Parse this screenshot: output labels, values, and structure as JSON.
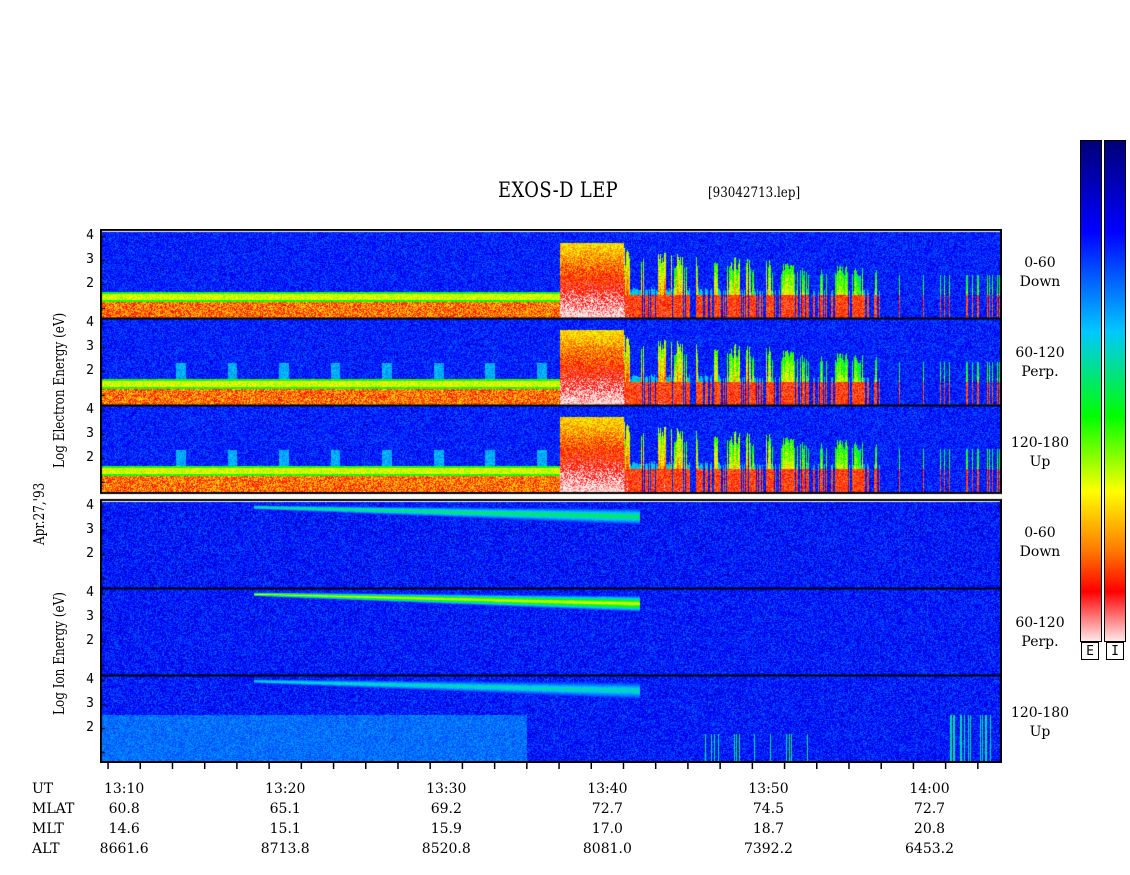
{
  "header": {
    "title": "EXOS-D LEP",
    "filename": "[93042713.lep]",
    "date_label": "Apr.27,'93"
  },
  "axis": {
    "electron_ylabel": "Log  Electron  Energy (eV)",
    "ion_ylabel": "Log  Ion  Energy (eV)"
  },
  "panels": [
    {
      "species": "Electron",
      "angle": "0-60",
      "dir": "Down"
    },
    {
      "species": "Electron",
      "angle": "60-120",
      "dir": "Perp."
    },
    {
      "species": "Electron",
      "angle": "120-180",
      "dir": "Up"
    },
    {
      "species": "Ion",
      "angle": "0-60",
      "dir": "Down"
    },
    {
      "species": "Ion",
      "angle": "60-120",
      "dir": "Perp."
    },
    {
      "species": "Ion",
      "angle": "120-180",
      "dir": "Up"
    }
  ],
  "footer": {
    "row_labels": [
      "UT",
      "MLAT",
      "MLT",
      "ALT"
    ],
    "columns": [
      {
        "ut": "13:10",
        "mlat": "60.8",
        "mlt": "14.6",
        "alt": "8661.6"
      },
      {
        "ut": "13:20",
        "mlat": "65.1",
        "mlt": "15.1",
        "alt": "8713.8"
      },
      {
        "ut": "13:30",
        "mlat": "69.2",
        "mlt": "15.9",
        "alt": "8520.8"
      },
      {
        "ut": "13:40",
        "mlat": "72.7",
        "mlt": "17.0",
        "alt": "8081.0"
      },
      {
        "ut": "13:50",
        "mlat": "74.5",
        "mlt": "18.7",
        "alt": "7392.2"
      },
      {
        "ut": "14:00",
        "mlat": "72.7",
        "mlt": "20.8",
        "alt": "6453.2"
      }
    ]
  },
  "colorbars": {
    "electron_label": "E",
    "ion_label": "I"
  },
  "chart_data": {
    "type": "heatmap",
    "title": "EXOS-D LEP",
    "xlabel": "UT",
    "x_ticks": [
      "13:10",
      "13:20",
      "13:30",
      "13:40",
      "13:50",
      "14:00"
    ],
    "x_range_minutes": [
      68.5,
      124.5
    ],
    "ylim": [
      0.6,
      4.2
    ],
    "y_ticks": [
      2,
      3,
      4
    ],
    "colormap": [
      "#ffffff",
      "#ff0000",
      "#ffff00",
      "#00ff00",
      "#00ffff",
      "#0000ff",
      "#00008b"
    ],
    "electron_features": {
      "low_energy_band_logE": 1.5,
      "band_end_UT": "13:37",
      "active_region_start_UT": "13:37",
      "active_region_end_UT": "13:57",
      "late_burst_UT": "14:06"
    },
    "ion_features": {
      "beam_start_UT": "13:18",
      "beam_end_UT": "13:42",
      "beam_logE_start": 4.0,
      "beam_logE_end": 3.6
    }
  }
}
